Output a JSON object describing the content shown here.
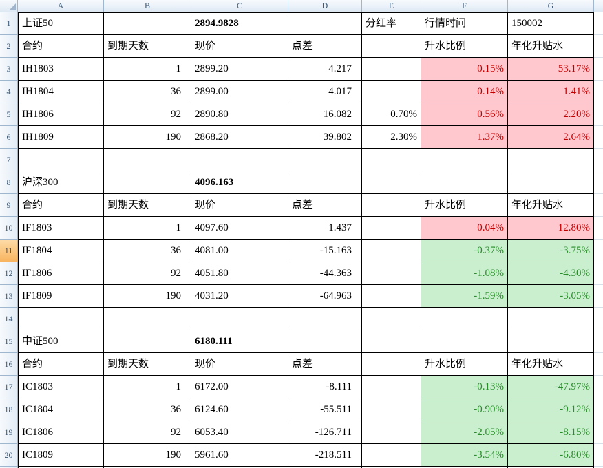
{
  "sheet": {
    "columns": [
      "A",
      "B",
      "C",
      "D",
      "E",
      "F",
      "G"
    ],
    "active_row": "11",
    "row_count": 21
  },
  "colors": {
    "up_bg": "#FFC7CE",
    "up_fg": "#C00000",
    "down_bg": "#C9EFCF",
    "down_fg": "#2B8C2B",
    "grid_border": "#000000",
    "header_border": "#9EB6CE",
    "active_header": "#F8B45F"
  },
  "grid": {
    "rows": [
      {
        "num": "1",
        "cells": [
          {
            "c": "A",
            "t": "上证50"
          },
          {
            "c": "C",
            "t": "2894.9828",
            "bold": true
          },
          {
            "c": "E",
            "t": "分红率"
          },
          {
            "c": "F",
            "t": "行情时间"
          },
          {
            "c": "G",
            "t": "150002"
          }
        ]
      },
      {
        "num": "2",
        "cells": [
          {
            "c": "A",
            "t": "合约"
          },
          {
            "c": "B",
            "t": "到期天数"
          },
          {
            "c": "C",
            "t": "现价"
          },
          {
            "c": "D",
            "t": "点差"
          },
          {
            "c": "F",
            "t": "升水比例"
          },
          {
            "c": "G",
            "t": "年化升贴水"
          }
        ]
      },
      {
        "num": "3",
        "cells": [
          {
            "c": "A",
            "t": "IH1803"
          },
          {
            "c": "B",
            "t": "1",
            "a": "arw"
          },
          {
            "c": "C",
            "t": "2899.20"
          },
          {
            "c": "D",
            "t": "4.217",
            "a": "arw"
          },
          {
            "c": "F",
            "t": "0.15%",
            "a": "ar",
            "tone": "up"
          },
          {
            "c": "G",
            "t": "53.17%",
            "a": "ar",
            "tone": "up"
          }
        ]
      },
      {
        "num": "4",
        "cells": [
          {
            "c": "A",
            "t": "IH1804"
          },
          {
            "c": "B",
            "t": "36",
            "a": "arw"
          },
          {
            "c": "C",
            "t": "2899.00"
          },
          {
            "c": "D",
            "t": "4.017",
            "a": "arw"
          },
          {
            "c": "F",
            "t": "0.14%",
            "a": "ar",
            "tone": "up"
          },
          {
            "c": "G",
            "t": "1.41%",
            "a": "ar",
            "tone": "up"
          }
        ]
      },
      {
        "num": "5",
        "cells": [
          {
            "c": "A",
            "t": "IH1806"
          },
          {
            "c": "B",
            "t": "92",
            "a": "arw"
          },
          {
            "c": "C",
            "t": "2890.80"
          },
          {
            "c": "D",
            "t": "16.082",
            "a": "arw"
          },
          {
            "c": "E",
            "t": "0.70%",
            "a": "ar"
          },
          {
            "c": "F",
            "t": "0.56%",
            "a": "ar",
            "tone": "up"
          },
          {
            "c": "G",
            "t": "2.20%",
            "a": "ar",
            "tone": "up"
          }
        ]
      },
      {
        "num": "6",
        "cells": [
          {
            "c": "A",
            "t": "IH1809"
          },
          {
            "c": "B",
            "t": "190",
            "a": "arw"
          },
          {
            "c": "C",
            "t": "2868.20"
          },
          {
            "c": "D",
            "t": "39.802",
            "a": "arw"
          },
          {
            "c": "E",
            "t": "2.30%",
            "a": "ar"
          },
          {
            "c": "F",
            "t": "1.37%",
            "a": "ar",
            "tone": "up"
          },
          {
            "c": "G",
            "t": "2.64%",
            "a": "ar",
            "tone": "up"
          }
        ]
      },
      {
        "num": "7",
        "cells": []
      },
      {
        "num": "8",
        "cells": [
          {
            "c": "A",
            "t": "沪深300"
          },
          {
            "c": "C",
            "t": "4096.163",
            "bold": true
          }
        ]
      },
      {
        "num": "9",
        "cells": [
          {
            "c": "A",
            "t": "合约"
          },
          {
            "c": "B",
            "t": "到期天数"
          },
          {
            "c": "C",
            "t": "现价"
          },
          {
            "c": "D",
            "t": "点差"
          },
          {
            "c": "F",
            "t": "升水比例"
          },
          {
            "c": "G",
            "t": "年化升贴水"
          }
        ]
      },
      {
        "num": "10",
        "cells": [
          {
            "c": "A",
            "t": "IF1803"
          },
          {
            "c": "B",
            "t": "1",
            "a": "arw"
          },
          {
            "c": "C",
            "t": "4097.60"
          },
          {
            "c": "D",
            "t": "1.437",
            "a": "arw"
          },
          {
            "c": "F",
            "t": "0.04%",
            "a": "ar",
            "tone": "up"
          },
          {
            "c": "G",
            "t": "12.80%",
            "a": "ar",
            "tone": "up"
          }
        ]
      },
      {
        "num": "11",
        "cells": [
          {
            "c": "A",
            "t": "IF1804"
          },
          {
            "c": "B",
            "t": "36",
            "a": "arw"
          },
          {
            "c": "C",
            "t": "4081.00"
          },
          {
            "c": "D",
            "t": "-15.163",
            "a": "arw"
          },
          {
            "c": "F",
            "t": "-0.37%",
            "a": "ar",
            "tone": "down"
          },
          {
            "c": "G",
            "t": "-3.75%",
            "a": "ar",
            "tone": "down"
          }
        ]
      },
      {
        "num": "12",
        "cells": [
          {
            "c": "A",
            "t": "IF1806"
          },
          {
            "c": "B",
            "t": "92",
            "a": "arw"
          },
          {
            "c": "C",
            "t": "4051.80"
          },
          {
            "c": "D",
            "t": "-44.363",
            "a": "arw"
          },
          {
            "c": "F",
            "t": "-1.08%",
            "a": "ar",
            "tone": "down"
          },
          {
            "c": "G",
            "t": "-4.30%",
            "a": "ar",
            "tone": "down"
          }
        ]
      },
      {
        "num": "13",
        "cells": [
          {
            "c": "A",
            "t": "IF1809"
          },
          {
            "c": "B",
            "t": "190",
            "a": "arw"
          },
          {
            "c": "C",
            "t": "4031.20"
          },
          {
            "c": "D",
            "t": "-64.963",
            "a": "arw"
          },
          {
            "c": "F",
            "t": "-1.59%",
            "a": "ar",
            "tone": "down"
          },
          {
            "c": "G",
            "t": "-3.05%",
            "a": "ar",
            "tone": "down"
          }
        ]
      },
      {
        "num": "14",
        "cells": []
      },
      {
        "num": "15",
        "cells": [
          {
            "c": "A",
            "t": "中证500"
          },
          {
            "c": "C",
            "t": "6180.111",
            "bold": true
          }
        ]
      },
      {
        "num": "16",
        "cells": [
          {
            "c": "A",
            "t": "合约"
          },
          {
            "c": "B",
            "t": "到期天数"
          },
          {
            "c": "C",
            "t": "现价"
          },
          {
            "c": "D",
            "t": "点差"
          },
          {
            "c": "F",
            "t": "升水比例"
          },
          {
            "c": "G",
            "t": "年化升贴水"
          }
        ]
      },
      {
        "num": "17",
        "cells": [
          {
            "c": "A",
            "t": "IC1803"
          },
          {
            "c": "B",
            "t": "1",
            "a": "arw"
          },
          {
            "c": "C",
            "t": "6172.00"
          },
          {
            "c": "D",
            "t": "-8.111",
            "a": "arw"
          },
          {
            "c": "F",
            "t": "-0.13%",
            "a": "ar",
            "tone": "down"
          },
          {
            "c": "G",
            "t": "-47.97%",
            "a": "ar",
            "tone": "down"
          }
        ]
      },
      {
        "num": "18",
        "cells": [
          {
            "c": "A",
            "t": "IC1804"
          },
          {
            "c": "B",
            "t": "36",
            "a": "arw"
          },
          {
            "c": "C",
            "t": "6124.60"
          },
          {
            "c": "D",
            "t": "-55.511",
            "a": "arw"
          },
          {
            "c": "F",
            "t": "-0.90%",
            "a": "ar",
            "tone": "down"
          },
          {
            "c": "G",
            "t": "-9.12%",
            "a": "ar",
            "tone": "down"
          }
        ]
      },
      {
        "num": "19",
        "cells": [
          {
            "c": "A",
            "t": "IC1806"
          },
          {
            "c": "B",
            "t": "92",
            "a": "arw"
          },
          {
            "c": "C",
            "t": "6053.40"
          },
          {
            "c": "D",
            "t": "-126.711",
            "a": "arw"
          },
          {
            "c": "F",
            "t": "-2.05%",
            "a": "ar",
            "tone": "down"
          },
          {
            "c": "G",
            "t": "-8.15%",
            "a": "ar",
            "tone": "down"
          }
        ]
      },
      {
        "num": "20",
        "cells": [
          {
            "c": "A",
            "t": "IC1809"
          },
          {
            "c": "B",
            "t": "190",
            "a": "arw"
          },
          {
            "c": "C",
            "t": "5961.60"
          },
          {
            "c": "D",
            "t": "-218.511",
            "a": "arw"
          },
          {
            "c": "F",
            "t": "-3.54%",
            "a": "ar",
            "tone": "down"
          },
          {
            "c": "G",
            "t": "-6.80%",
            "a": "ar",
            "tone": "down"
          }
        ]
      },
      {
        "num": "21",
        "cells": []
      }
    ]
  }
}
